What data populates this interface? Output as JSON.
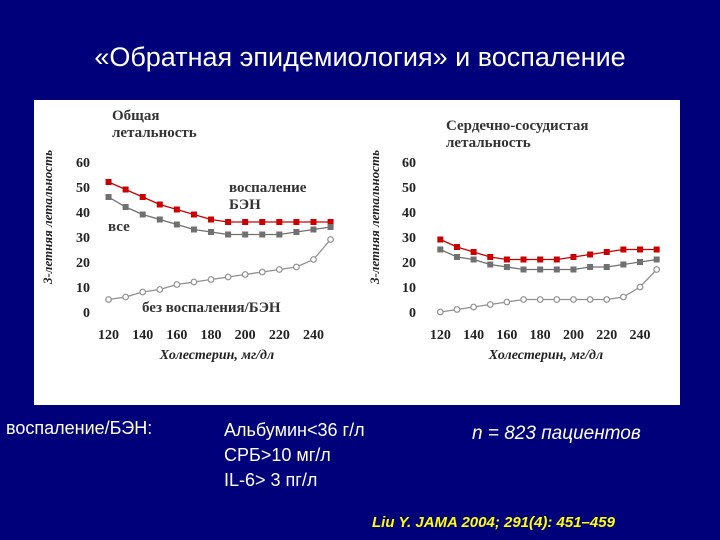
{
  "slide": {
    "title": "«Обратная эпидемиология» и воспаление",
    "definition_label": "воспаление/БЭН:",
    "definition_items": [
      "Альбумин<36 г/л",
      "СРБ>10 мг/л",
      "IL-6> 3 пг/л"
    ],
    "patients": "n = 823 пациентов",
    "citation": "Liu Y. JAMA 2004; 291(4): 451–459"
  },
  "chart_data": [
    {
      "type": "line",
      "title": "Общая\nлетальность",
      "xlabel": "Холестерин, мг/дл",
      "ylabel": "3-летняя летальность",
      "x": [
        120,
        130,
        140,
        150,
        160,
        170,
        180,
        190,
        200,
        210,
        220,
        230,
        240,
        250
      ],
      "x_ticks": [
        120,
        140,
        160,
        180,
        200,
        220,
        240
      ],
      "y_ticks": [
        0,
        10,
        20,
        30,
        40,
        50,
        60
      ],
      "xlim": [
        115,
        252
      ],
      "ylim": [
        0,
        60
      ],
      "grid": false,
      "series": [
        {
          "name": "воспаление\nБЭН",
          "color": "#cc0000",
          "marker": "square-filled",
          "values": [
            52,
            49,
            46,
            43,
            41,
            39,
            37,
            36,
            36,
            36,
            36,
            36,
            36,
            36
          ]
        },
        {
          "name": "все",
          "color": "#707070",
          "marker": "square-filled",
          "values": [
            46,
            42,
            39,
            37,
            35,
            33,
            32,
            31,
            31,
            31,
            31,
            32,
            33,
            34
          ]
        },
        {
          "name": "без воспаления/БЭН",
          "color": "#909090",
          "marker": "circle-open",
          "values": [
            5,
            6,
            8,
            9,
            11,
            12,
            13,
            14,
            15,
            16,
            17,
            18,
            21,
            29
          ]
        }
      ]
    },
    {
      "type": "line",
      "title": "Сердечно-сосудистая\nлетальность",
      "xlabel": "Холестерин, мг/дл",
      "ylabel": "3-летняя летальность",
      "x": [
        120,
        130,
        140,
        150,
        160,
        170,
        180,
        190,
        200,
        210,
        220,
        230,
        240,
        250
      ],
      "x_ticks": [
        120,
        140,
        160,
        180,
        200,
        220,
        240
      ],
      "y_ticks": [
        0,
        10,
        20,
        30,
        40,
        50,
        60
      ],
      "xlim": [
        115,
        252
      ],
      "ylim": [
        0,
        60
      ],
      "grid": false,
      "series": [
        {
          "name": "воспаление БЭН",
          "color": "#cc0000",
          "marker": "square-filled",
          "values": [
            29,
            26,
            24,
            22,
            21,
            21,
            21,
            21,
            22,
            23,
            24,
            25,
            25,
            25
          ]
        },
        {
          "name": "все",
          "color": "#707070",
          "marker": "square-filled",
          "values": [
            25,
            22,
            21,
            19,
            18,
            17,
            17,
            17,
            17,
            18,
            18,
            19,
            20,
            21
          ]
        },
        {
          "name": "без воспаления/БЭН",
          "color": "#909090",
          "marker": "circle-open",
          "values": [
            0,
            1,
            2,
            3,
            4,
            5,
            5,
            5,
            5,
            5,
            5,
            6,
            10,
            17
          ]
        }
      ]
    }
  ]
}
